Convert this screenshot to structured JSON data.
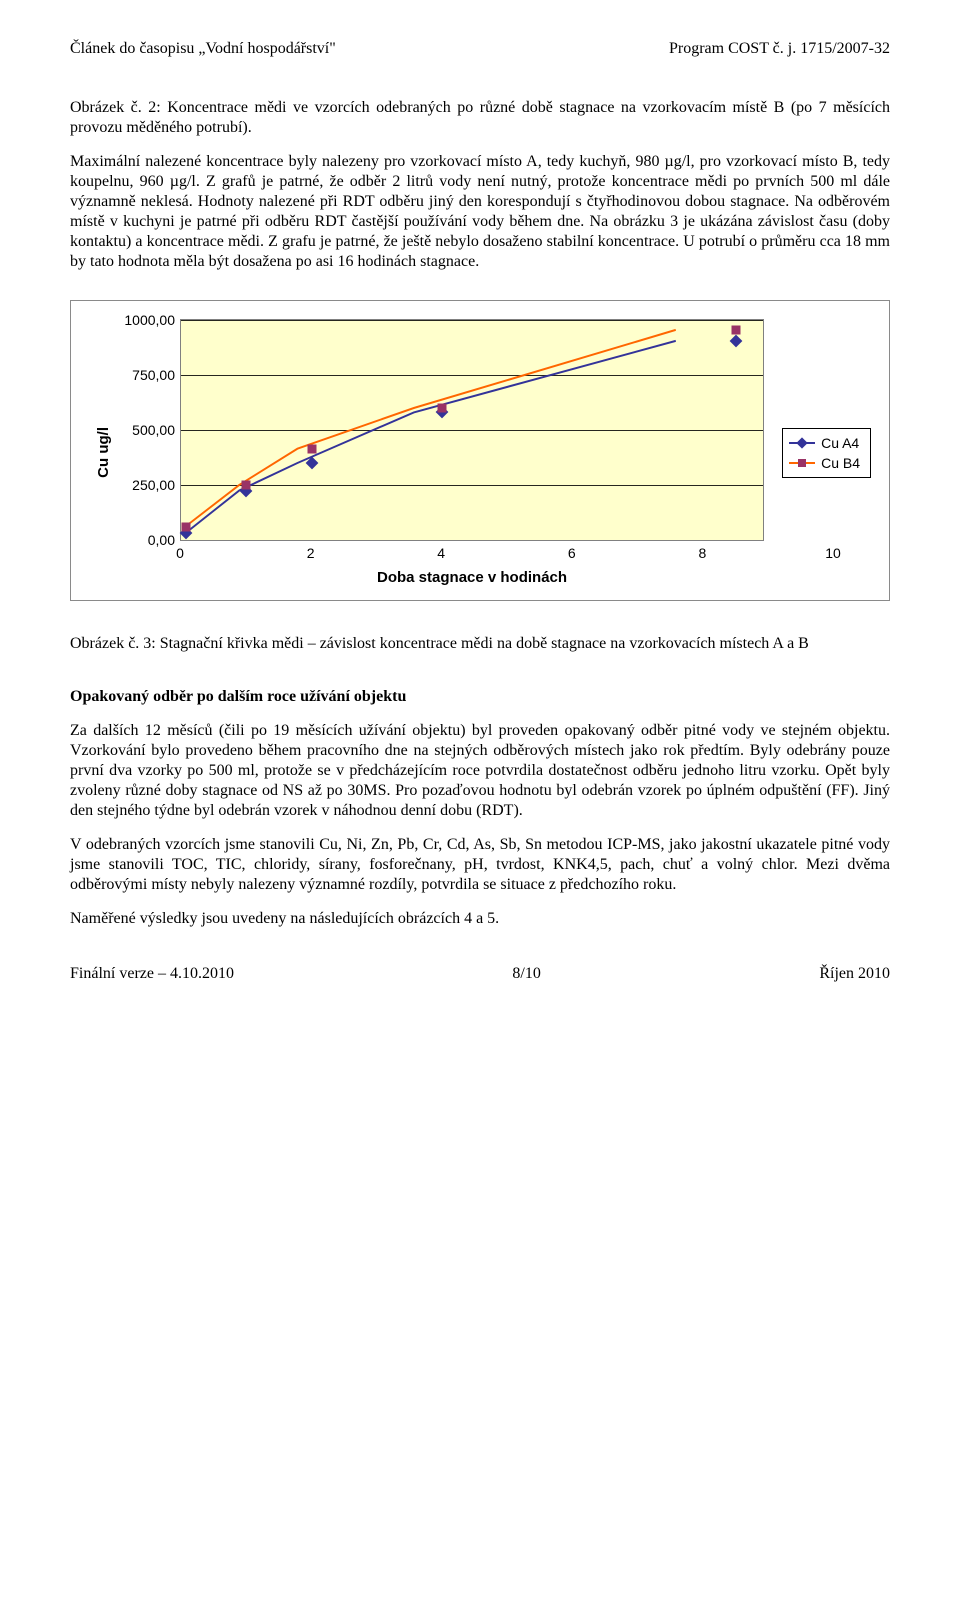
{
  "header": {
    "left": "Článek do časopisu „Vodní hospodářství\"",
    "right": "Program COST č. j. 1715/2007-32"
  },
  "para1": "Obrázek č. 2: Koncentrace mědi ve vzorcích odebraných po různé době stagnace na vzorkovacím místě B (po 7 měsících provozu měděného potrubí).",
  "para2": "Maximální nalezené koncentrace byly nalezeny pro vzorkovací místo A, tedy kuchyň, 980 µg/l, pro vzorkovací místo B, tedy koupelnu, 960 µg/l. Z grafů je patrné, že odběr 2 litrů vody není nutný, protože koncentrace mědi po prvních 500 ml dále významně neklesá. Hodnoty nalezené při RDT odběru jiný den korespondují s čtyřhodinovou dobou stagnace. Na odběrovém místě v kuchyni je patrné při odběru RDT častější používání vody během dne. Na obrázku 3 je ukázána závislost času (doby kontaktu) a koncentrace mědi. Z grafu je patrné, že ještě nebylo dosaženo stabilní koncentrace. U potrubí o průměru cca 18 mm by tato hodnota měla být dosažena po asi 16 hodinách stagnace.",
  "chart": {
    "type": "line",
    "background_color": "#ffffcc",
    "grid_color": "#000000",
    "border_color": "#808080",
    "ylabel": "Cu  ug/l",
    "xlabel": "Doba stagnace v hodinách",
    "ylim": [
      0,
      1000
    ],
    "xlim": [
      0,
      10
    ],
    "ytick_step": 250,
    "xtick_step": 2,
    "yticks": [
      "0,00",
      "250,00",
      "500,00",
      "750,00",
      "1000,00"
    ],
    "xticks": [
      "0",
      "2",
      "4",
      "6",
      "8",
      "10"
    ],
    "series": [
      {
        "name": "Cu A4",
        "color": "#333399",
        "marker": "diamond",
        "marker_color": "#333399",
        "x": [
          0.07,
          1,
          2,
          4,
          8.5
        ],
        "y": [
          30,
          225,
          350,
          580,
          905
        ]
      },
      {
        "name": "Cu B4",
        "color": "#ff6600",
        "marker": "square",
        "marker_color": "#993366",
        "x": [
          0.07,
          1,
          2,
          4,
          8.5
        ],
        "y": [
          60,
          250,
          415,
          600,
          955
        ]
      }
    ],
    "line_width": 2,
    "marker_size": 9,
    "font_family": "Arial",
    "label_fontsize": 14,
    "axis_label_fontsize": 15
  },
  "caption3": "Obrázek č. 3: Stagnační křivka mědi – závislost koncentrace mědi na době stagnace na vzorkovacích místech A a B",
  "section_title": "Opakovaný odběr po dalším roce užívání objektu",
  "para3": "Za dalších 12 měsíců (čili po 19 měsících užívání objektu) byl proveden opakovaný odběr pitné vody ve stejném objektu. Vzorkování bylo provedeno během pracovního dne na stejných odběrových místech jako rok předtím. Byly odebrány pouze první dva vzorky po 500 ml, protože se v předcházejícím roce potvrdila dostatečnost odběru jednoho litru vzorku. Opět byly zvoleny různé doby stagnace od NS až po 30MS. Pro pozaďovou hodnotu byl odebrán vzorek po úplném odpuštění (FF). Jiný den stejného týdne byl odebrán vzorek v náhodnou denní dobu (RDT).",
  "para4": "V odebraných vzorcích jsme stanovili Cu, Ni, Zn, Pb, Cr, Cd, As, Sb, Sn metodou ICP-MS, jako jakostní ukazatele pitné vody jsme stanovili TOC, TIC, chloridy, sírany, fosforečnany, pH, tvrdost, KNK4,5, pach, chuť a volný chlor. Mezi dvěma odběrovými místy nebyly nalezeny významné rozdíly, potvrdila se situace z předchozího roku.",
  "para5": "Naměřené výsledky jsou uvedeny na následujících obrázcích 4 a 5.",
  "footer": {
    "left": "Finální verze – 4.10.2010",
    "center": "8/10",
    "right": "Říjen 2010"
  }
}
